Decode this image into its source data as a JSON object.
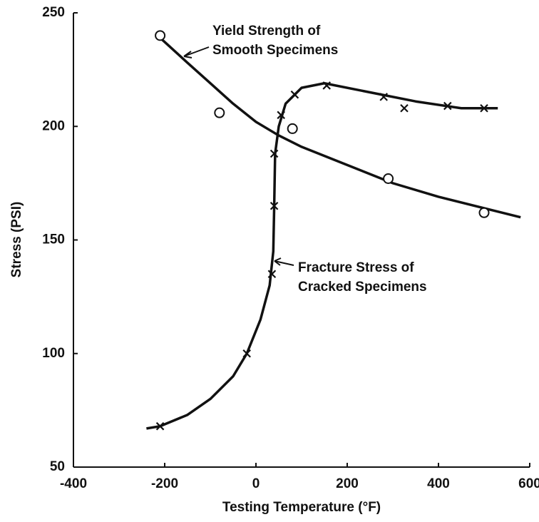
{
  "chart_data": {
    "type": "line",
    "xlabel": "Testing Temperature (°F)",
    "ylabel": "Stress (PSI)",
    "xlim": [
      -400,
      600
    ],
    "xticks": [
      -400,
      -200,
      0,
      200,
      400,
      600
    ],
    "ylim": [
      50,
      250
    ],
    "yticks": [
      50,
      100,
      150,
      200,
      250
    ],
    "grid": false,
    "annotations": [
      {
        "lines": [
          "Yield Strength of",
          "Smooth Specimens"
        ]
      },
      {
        "lines": [
          "Fracture Stress of",
          "Cracked Specimens"
        ]
      }
    ],
    "series": [
      {
        "color": "#111111",
        "marker": "circle",
        "x": [
          -210,
          -80,
          80,
          290,
          500
        ],
        "values": [
          240,
          206,
          199,
          177,
          162
        ],
        "curve_x": [
          -210,
          -150,
          -100,
          -50,
          0,
          50,
          100,
          200,
          300,
          400,
          500,
          580
        ],
        "curve_values": [
          239,
          228,
          219,
          210,
          202,
          196,
          191,
          183,
          175,
          169,
          164,
          160
        ]
      },
      {
        "color": "#111111",
        "marker": "x",
        "x": [
          -210,
          -20,
          35,
          40,
          40,
          55,
          85,
          155,
          280,
          325,
          420,
          500
        ],
        "values": [
          68,
          100,
          135,
          165,
          188,
          205,
          214,
          218,
          213,
          208,
          209,
          208
        ],
        "curve_x": [
          -240,
          -210,
          -150,
          -100,
          -50,
          -20,
          10,
          30,
          38,
          40,
          42,
          50,
          65,
          100,
          150,
          250,
          350,
          450,
          530
        ],
        "curve_values": [
          67,
          68,
          73,
          80,
          90,
          100,
          115,
          130,
          145,
          165,
          188,
          200,
          210,
          217,
          219,
          215,
          211,
          208,
          208
        ]
      }
    ]
  }
}
